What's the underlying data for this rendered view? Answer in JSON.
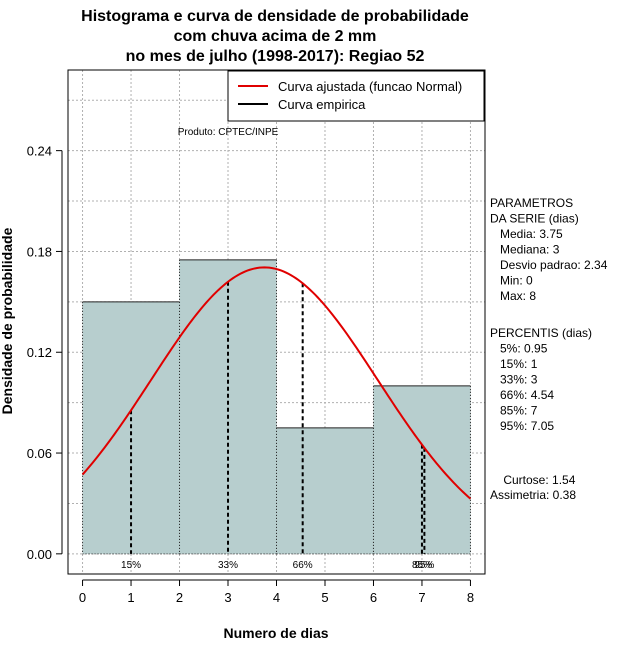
{
  "chart_data": {
    "type": "histogram",
    "title_lines": [
      "Histograma e curva de densidade de probabilidade",
      "com chuva acima de 2 mm",
      "no mes de julho (1998-2017): Regiao 52"
    ],
    "xlabel": "Numero de dias",
    "ylabel": "Densidade de probabilidade",
    "xlim": [
      -0.3,
      8.3
    ],
    "ylim": [
      -0.012,
      0.288
    ],
    "xticks": [
      "0",
      "1",
      "2",
      "3",
      "4",
      "5",
      "6",
      "7",
      "8"
    ],
    "yticks": [
      "0.00",
      "0.06",
      "0.12",
      "0.18",
      "0.24"
    ],
    "grid": true,
    "bins": [
      {
        "x0": 0,
        "x1": 2,
        "value": 0.15
      },
      {
        "x0": 2,
        "x1": 4,
        "value": 0.175
      },
      {
        "x0": 4,
        "x1": 6,
        "value": 0.075
      },
      {
        "x0": 6,
        "x1": 8,
        "value": 0.1
      }
    ],
    "curve": {
      "name": "Curva ajustada (funcao Normal)",
      "mean": 3.75,
      "sd": 2.34,
      "color": "#e00000"
    },
    "empirical_name": "Curva empirica",
    "legend_position": "top-right",
    "percentile_markers": [
      {
        "x": 1,
        "label": "15%"
      },
      {
        "x": 3,
        "label": "33%"
      },
      {
        "x": 4.54,
        "label": "66%"
      },
      {
        "x": 7,
        "label": "85%"
      },
      {
        "x": 7.05,
        "label": "95%"
      }
    ],
    "product_note": "Produto: CPTEC/INPE",
    "params_block": [
      "PARAMETROS",
      "DA SERIE (dias)",
      "   Media: 3.75",
      "   Mediana: 3",
      "   Desvio padrao: 2.34",
      "   Min: 0",
      "   Max: 8"
    ],
    "percentis_block": [
      "PERCENTIS (dias)",
      "   5%: 0.95",
      "   15%: 1",
      "   33%: 3",
      "   66%: 4.54",
      "   85%: 7",
      "   95%: 7.05"
    ],
    "stats_block": [
      "    Curtose: 1.54",
      "Assimetria: 0.38"
    ],
    "colors": {
      "bar_fill": "#b7cece",
      "bar_stroke": "#222222",
      "grid": "#b0b0b0",
      "axis": "#000000"
    }
  }
}
